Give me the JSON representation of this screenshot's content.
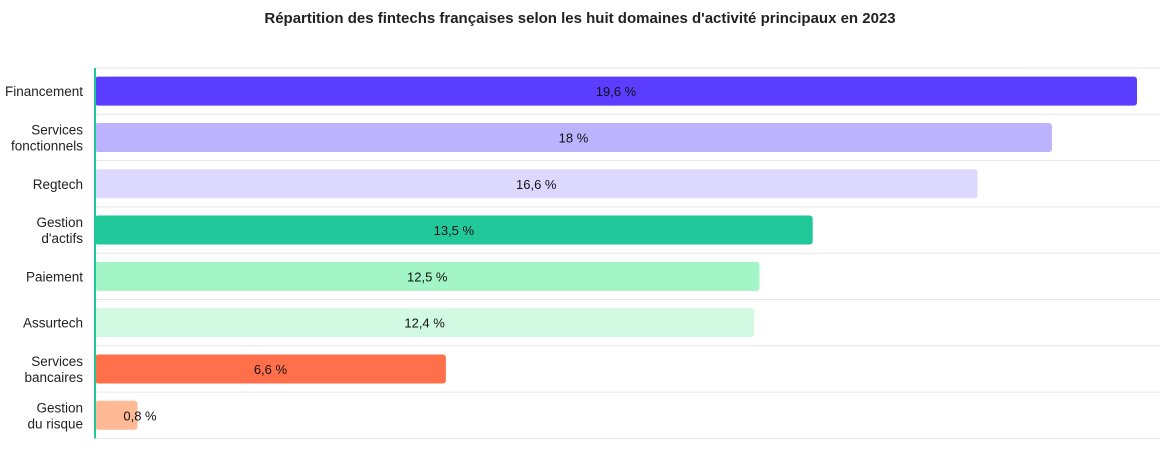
{
  "chart_data": {
    "type": "bar",
    "orientation": "horizontal",
    "title": "Répartition des fintechs françaises selon les huit domaines d'activité principaux en 2023",
    "xlabel": "",
    "ylabel": "",
    "xlim": [
      0,
      20
    ],
    "grid": true,
    "legend": "none",
    "categories": [
      [
        "Financement"
      ],
      [
        "Services",
        "fonctionnels"
      ],
      [
        "Regtech"
      ],
      [
        "Gestion",
        "d'actifs"
      ],
      [
        "Paiement"
      ],
      [
        "Assurtech"
      ],
      [
        "Services",
        "bancaires"
      ],
      [
        "Gestion",
        "du risque"
      ]
    ],
    "values": [
      19.6,
      18,
      16.6,
      13.5,
      12.5,
      12.4,
      6.6,
      0.8
    ],
    "value_labels": [
      "19,6 %",
      "18 %",
      "16,6 %",
      "13,5 %",
      "12,5 %",
      "12,4 %",
      "6,6 %",
      "0,8 %"
    ],
    "colors": [
      "#5a3dff",
      "#bcb3ff",
      "#ddd8ff",
      "#21c99a",
      "#a3f5c8",
      "#d2fae3",
      "#ff704a",
      "#ffb994"
    ],
    "axis_color": "#21c99a",
    "grid_color": "#e6e6e6"
  }
}
